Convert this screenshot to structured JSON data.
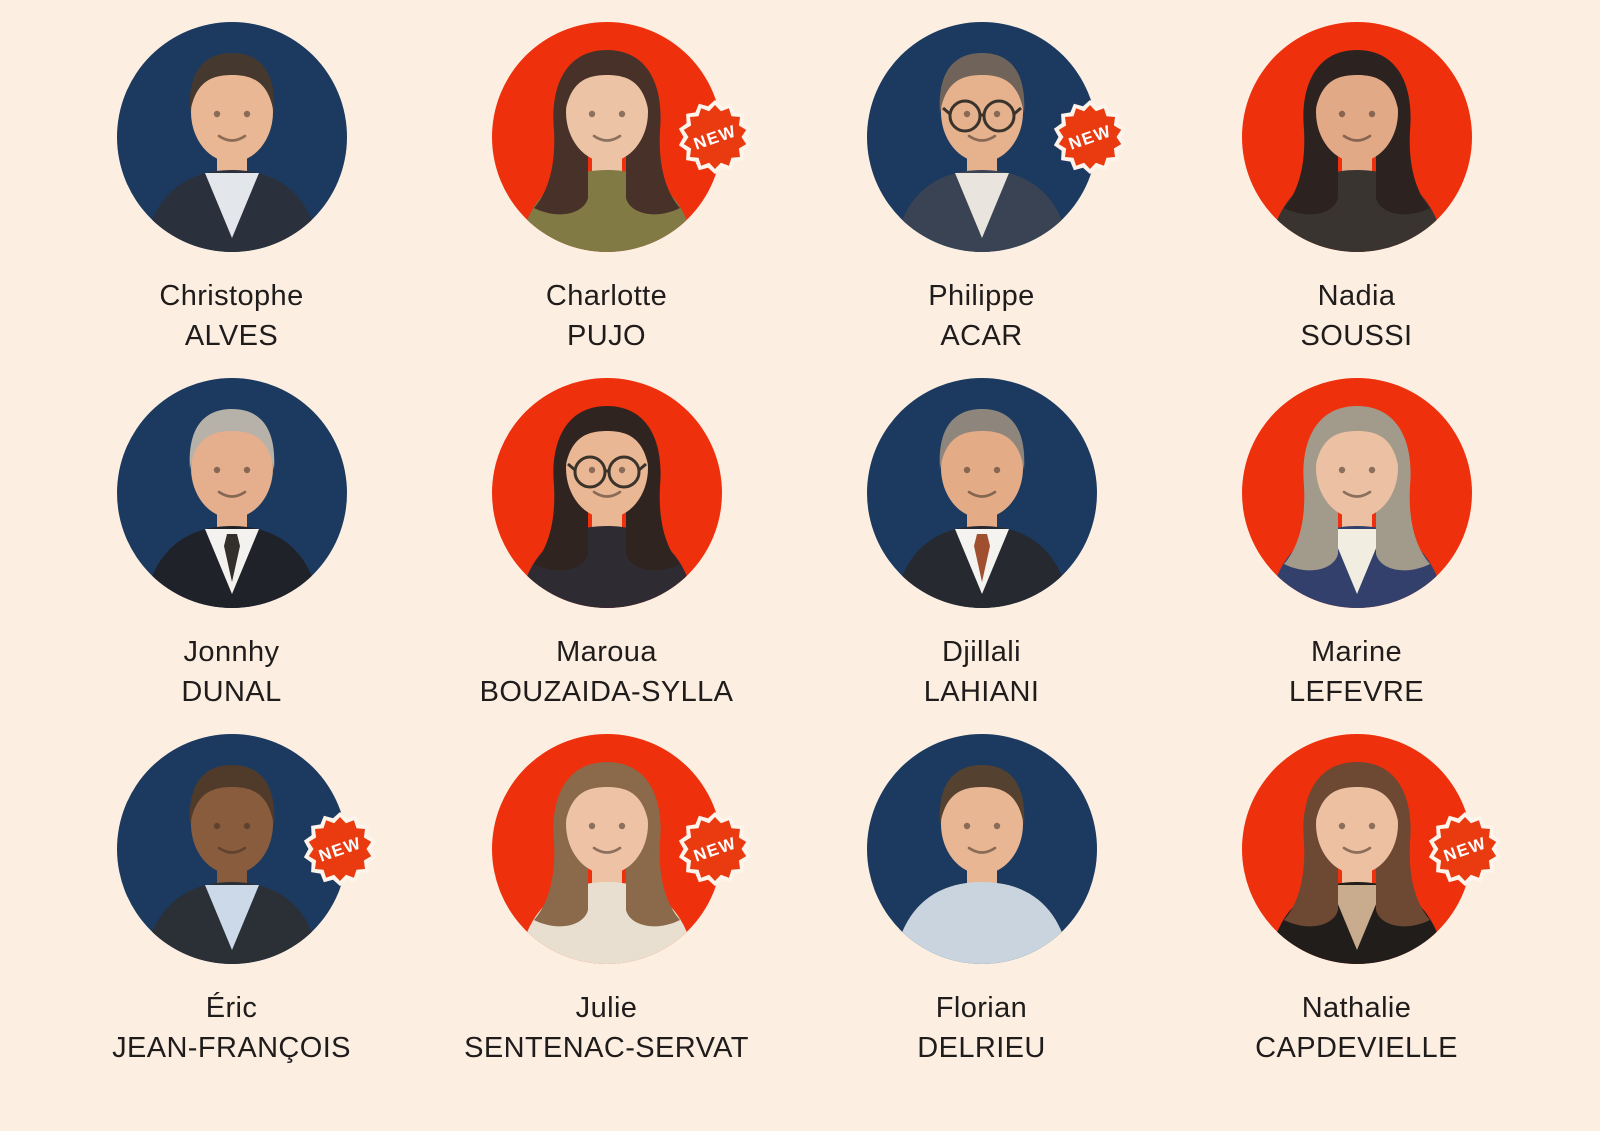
{
  "page": {
    "background": "#fcefe2"
  },
  "theme": {
    "navy_circle": "#1c3a5f",
    "red_circle": "#ee300d",
    "badge_fill": "#e93a10",
    "badge_border": "#fdf4ec",
    "badge_text_color": "#ffffff",
    "name_text_color": "#201c1b"
  },
  "labels": {
    "new_badge": "NEW"
  },
  "people": [
    {
      "first_name": "Christophe",
      "last_name": "ALVES",
      "circle": "navy",
      "new_badge": false,
      "avatar": {
        "hairstyle": "short",
        "hair": "#45382f",
        "skin": "#e9b793",
        "top": "#2a313c",
        "shirt": "#e3e6ea",
        "tie": "#e3e6ea",
        "glasses": false
      }
    },
    {
      "first_name": "Charlotte",
      "last_name": "PUJO",
      "circle": "red",
      "new_badge": true,
      "avatar": {
        "hairstyle": "long",
        "hair": "#483129",
        "skin": "#ecc3a4",
        "top": "#827a45",
        "shirt": "#827a45",
        "tie": "#827a45",
        "glasses": false
      }
    },
    {
      "first_name": "Philippe",
      "last_name": "ACAR",
      "circle": "navy",
      "new_badge": true,
      "avatar": {
        "hairstyle": "short",
        "hair": "#70635a",
        "skin": "#e6b28e",
        "top": "#3a4354",
        "shirt": "#e9e4dd",
        "tie": "#e9e4dd",
        "glasses": true
      }
    },
    {
      "first_name": "Nadia",
      "last_name": "SOUSSI",
      "circle": "red",
      "new_badge": false,
      "avatar": {
        "hairstyle": "long",
        "hair": "#2c2220",
        "skin": "#e2a987",
        "top": "#3a3431",
        "shirt": "#3a3431",
        "tie": "#3a3431",
        "glasses": false
      }
    },
    {
      "first_name": "Jonnhy",
      "last_name": "DUNAL",
      "circle": "navy",
      "new_badge": false,
      "avatar": {
        "hairstyle": "short",
        "hair": "#b6b1a9",
        "skin": "#e5af8d",
        "top": "#20222a",
        "shirt": "#f4f2ee",
        "tie": "#33302b",
        "glasses": false
      }
    },
    {
      "first_name": "Maroua",
      "last_name": "BOUZAIDA-SYLLA",
      "circle": "red",
      "new_badge": false,
      "avatar": {
        "hairstyle": "long",
        "hair": "#302420",
        "skin": "#eab795",
        "top": "#2f2b33",
        "shirt": "#2f2b33",
        "tie": "#2f2b33",
        "glasses": true
      }
    },
    {
      "first_name": "Djillali",
      "last_name": "LAHIANI",
      "circle": "navy",
      "new_badge": false,
      "avatar": {
        "hairstyle": "short",
        "hair": "#8e867c",
        "skin": "#e3ac87",
        "top": "#262930",
        "shirt": "#f5f3ef",
        "tie": "#a0502f",
        "glasses": false
      }
    },
    {
      "first_name": "Marine",
      "last_name": "LEFEVRE",
      "circle": "red",
      "new_badge": false,
      "avatar": {
        "hairstyle": "long",
        "hair": "#a29a8b",
        "skin": "#ecc0a2",
        "top": "#33406b",
        "shirt": "#f2ede1",
        "tie": "#f2ede1",
        "glasses": false
      }
    },
    {
      "first_name": "Éric",
      "last_name": "JEAN-FRANÇOIS",
      "circle": "navy",
      "new_badge": true,
      "avatar": {
        "hairstyle": "short",
        "hair": "#503a2a",
        "skin": "#8a5c3e",
        "top": "#2b2f36",
        "shirt": "#ccd9e8",
        "tie": "#ccd9e8",
        "glasses": false
      }
    },
    {
      "first_name": "Julie",
      "last_name": "SENTENAC-SERVAT",
      "circle": "red",
      "new_badge": true,
      "avatar": {
        "hairstyle": "long",
        "hair": "#8a6a4a",
        "skin": "#eec2a4",
        "top": "#e9dfd0",
        "shirt": "#e9dfd0",
        "tie": "#e9dfd0",
        "glasses": false
      }
    },
    {
      "first_name": "Florian",
      "last_name": "DELRIEU",
      "circle": "navy",
      "new_badge": false,
      "avatar": {
        "hairstyle": "short",
        "hair": "#54412f",
        "skin": "#e8b693",
        "top": "#c9d4de",
        "shirt": "#c9d4de",
        "tie": "#c9d4de",
        "glasses": false
      }
    },
    {
      "first_name": "Nathalie",
      "last_name": "CAPDEVIELLE",
      "circle": "red",
      "new_badge": true,
      "avatar": {
        "hairstyle": "long",
        "hair": "#6d4832",
        "skin": "#ecc0a0",
        "top": "#211d1b",
        "shirt": "#c9ab8d",
        "tie": "#c9ab8d",
        "glasses": false
      }
    }
  ]
}
